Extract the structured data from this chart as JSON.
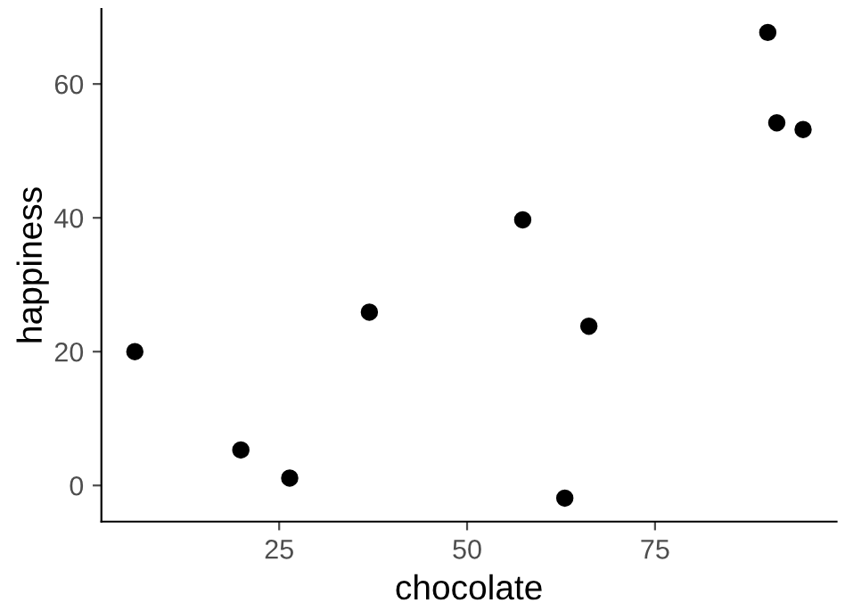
{
  "chart_data": {
    "type": "scatter",
    "xlabel": "chocolate",
    "ylabel": "happiness",
    "x": [
      5.8,
      19.9,
      26.4,
      37.0,
      57.4,
      66.2,
      63.0,
      90.0,
      91.2,
      94.7
    ],
    "series": [
      {
        "color": "#000000",
        "values": [
          20.0,
          5.3,
          1.1,
          25.9,
          39.7,
          23.8,
          -1.9,
          67.7,
          54.2,
          53.2
        ]
      }
    ],
    "xlim": [
      1.35,
      99.15
    ],
    "ylim": [
      -5.4,
      71.2
    ],
    "xticks": [
      25,
      50,
      75
    ],
    "yticks": [
      0,
      20,
      40,
      60
    ],
    "grid": false,
    "legend": false,
    "marker": "circle"
  }
}
